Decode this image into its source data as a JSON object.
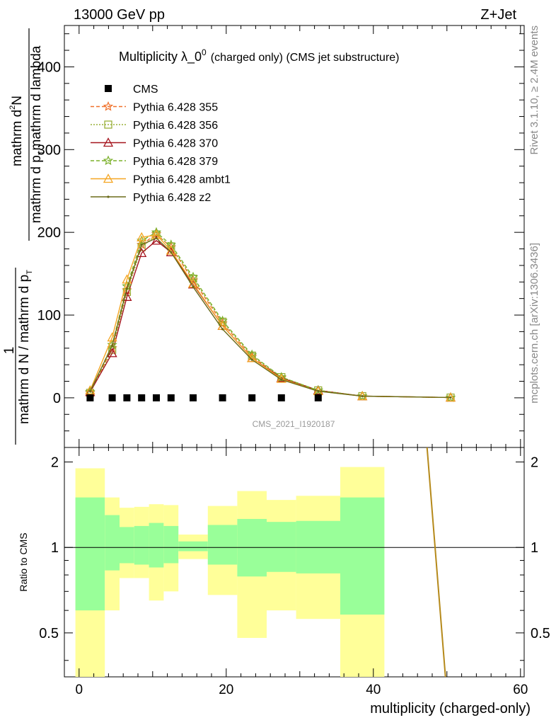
{
  "header": {
    "left": "13000 GeV pp",
    "right": "Z+Jet"
  },
  "side": {
    "rivet": "Rivet 3.1.10, ≥ 2.4M events",
    "mcplots": "mcplots.cern.ch [arXiv:1306.3436]"
  },
  "chart_data": {
    "type": "line",
    "title_main": "Multiplicity λ_0",
    "title_sup": "0",
    "title_sub": "(charged only) (CMS jet substructure)",
    "watermark": "CMS_2021_I1920187",
    "xlabel": "multiplicity (charged-only)",
    "ylabel_main": {
      "num_a": "mathrm d",
      "num_b": "N",
      "num_sup": "2",
      "den_a": "mathrm d p",
      "den_sub": "T",
      "den_b": "mathrm d lambda",
      "outer_num": "1",
      "outer_den_a": "mathrm d N / mathrm d p",
      "outer_den_sub": "T"
    },
    "ylabel_ratio": "Ratio to CMS",
    "xlim": [
      -2,
      60.5
    ],
    "ylim": [
      -60,
      450
    ],
    "ratio_ylim": [
      0.35,
      2.25
    ],
    "x_ticks": [
      "0",
      "20",
      "40",
      "60"
    ],
    "y_ticks": [
      "0",
      "100",
      "200",
      "300",
      "400"
    ],
    "ratio_ticks": [
      "0.5",
      "1",
      "2"
    ],
    "cms": {
      "name": "CMS",
      "x": [
        1.5,
        4.5,
        6.5,
        8.5,
        10.5,
        12.5,
        15.5,
        19.5,
        23.5,
        27.5,
        32.5
      ],
      "y": [
        0,
        0,
        0,
        0,
        0,
        0,
        0,
        0,
        0,
        0,
        0
      ]
    },
    "band_bins": [
      {
        "x0": -0.5,
        "x1": 3.5,
        "g0": 0.6,
        "g1": 1.5,
        "y0": 0.35,
        "y1": 1.9
      },
      {
        "x0": 3.5,
        "x1": 5.5,
        "g0": 0.83,
        "g1": 1.3,
        "y0": 0.6,
        "y1": 1.5
      },
      {
        "x0": 5.5,
        "x1": 7.5,
        "g0": 0.88,
        "g1": 1.18,
        "y0": 0.78,
        "y1": 1.38
      },
      {
        "x0": 7.5,
        "x1": 9.5,
        "g0": 0.87,
        "g1": 1.19,
        "y0": 0.78,
        "y1": 1.39
      },
      {
        "x0": 9.5,
        "x1": 11.5,
        "g0": 0.85,
        "g1": 1.22,
        "y0": 0.65,
        "y1": 1.42
      },
      {
        "x0": 11.5,
        "x1": 13.5,
        "g0": 0.88,
        "g1": 1.19,
        "y0": 0.7,
        "y1": 1.41
      },
      {
        "x0": 13.5,
        "x1": 17.5,
        "g0": 0.97,
        "g1": 1.05,
        "y0": 0.91,
        "y1": 1.11
      },
      {
        "x0": 17.5,
        "x1": 21.5,
        "g0": 0.87,
        "g1": 1.2,
        "y0": 0.68,
        "y1": 1.4
      },
      {
        "x0": 21.5,
        "x1": 25.5,
        "g0": 0.79,
        "g1": 1.26,
        "y0": 0.48,
        "y1": 1.58
      },
      {
        "x0": 25.5,
        "x1": 29.5,
        "g0": 0.82,
        "g1": 1.23,
        "y0": 0.6,
        "y1": 1.47
      },
      {
        "x0": 29.5,
        "x1": 35.5,
        "g0": 0.81,
        "g1": 1.24,
        "y0": 0.56,
        "y1": 1.52
      },
      {
        "x0": 35.5,
        "x1": 41.5,
        "g0": 0.58,
        "g1": 1.5,
        "y0": 0.35,
        "y1": 1.92
      }
    ],
    "ratio_line": {
      "x": [
        47.3,
        49.8
      ],
      "y": [
        2.4,
        0.35
      ],
      "color": "#b5891a"
    },
    "series": [
      {
        "name": "Pythia 6.428 355",
        "color": "#f0712a",
        "dash": "5,3",
        "marker": "star",
        "x": [
          1.5,
          4.5,
          6.5,
          8.5,
          10.5,
          12.5,
          15.5,
          19.5,
          23.5,
          27.5,
          32.5,
          38.5,
          50.5
        ],
        "y": [
          6,
          60,
          130,
          185,
          198,
          182,
          142,
          90,
          50,
          24,
          9,
          2,
          0.3
        ]
      },
      {
        "name": "Pythia 6.428 356",
        "color": "#9ab03a",
        "dash": "2,2",
        "marker": "square",
        "x": [
          1.5,
          4.5,
          6.5,
          8.5,
          10.5,
          12.5,
          15.5,
          19.5,
          23.5,
          27.5,
          32.5,
          38.5,
          50.5
        ],
        "y": [
          6,
          58,
          128,
          182,
          197,
          183,
          144,
          92,
          51,
          25,
          9,
          2,
          0.3
        ]
      },
      {
        "name": "Pythia 6.428 370",
        "color": "#a5141e",
        "dash": "",
        "marker": "triangle",
        "x": [
          1.5,
          4.5,
          6.5,
          8.5,
          10.5,
          12.5,
          15.5,
          19.5,
          23.5,
          27.5,
          32.5,
          38.5,
          50.5
        ],
        "y": [
          7,
          54,
          122,
          175,
          190,
          176,
          137,
          87,
          48,
          24,
          9,
          2,
          0.3
        ]
      },
      {
        "name": "Pythia 6.428 379",
        "color": "#7bb02a",
        "dash": "5,3",
        "marker": "star",
        "x": [
          1.5,
          4.5,
          6.5,
          8.5,
          10.5,
          12.5,
          15.5,
          19.5,
          23.5,
          27.5,
          32.5,
          38.5,
          50.5
        ],
        "y": [
          7,
          64,
          135,
          190,
          200,
          185,
          146,
          93,
          52,
          25,
          9,
          2,
          0.3
        ]
      },
      {
        "name": "Pythia 6.428 ambt1",
        "color": "#f5a623",
        "dash": "",
        "marker": "triangle",
        "x": [
          1.5,
          4.5,
          6.5,
          8.5,
          10.5,
          12.5,
          15.5,
          19.5,
          23.5,
          27.5,
          32.5,
          38.5,
          50.5
        ],
        "y": [
          9,
          73,
          143,
          194,
          197,
          178,
          138,
          87,
          48,
          23,
          8,
          2,
          0.3
        ]
      },
      {
        "name": "Pythia 6.428 z2",
        "color": "#6b6b1a",
        "dash": "",
        "marker": "dot",
        "x": [
          1.5,
          4.5,
          6.5,
          8.5,
          10.5,
          12.5,
          15.5,
          19.5,
          23.5,
          27.5,
          32.5,
          38.5,
          50.5
        ],
        "y": [
          8,
          63,
          132,
          185,
          193,
          176,
          134,
          83,
          46,
          22,
          8,
          2,
          0.3
        ]
      }
    ]
  }
}
